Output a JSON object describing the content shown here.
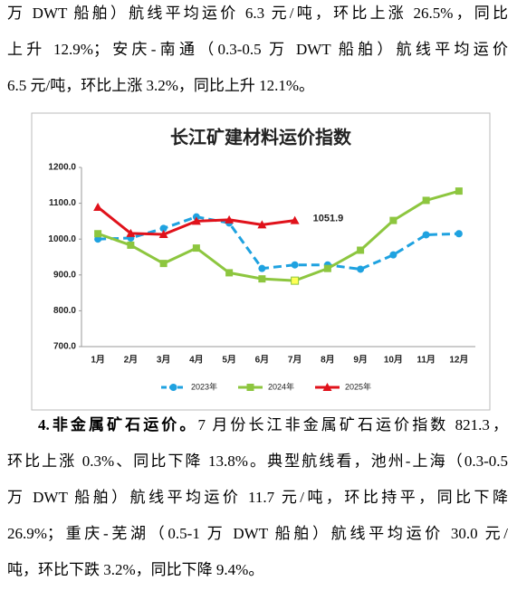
{
  "paragraphs": [
    {
      "lines": [
        "万 DWT 船舶）航线平均运价 6.3 元/吨，环比上涨 26.5%，同比",
        "上升 12.9%；安庆-南通（0.3-0.5 万 DWT 船舶）航线平均运价",
        "6.5 元/吨，环比上涨 3.2%，同比上升 12.1%。"
      ]
    },
    {
      "heading": "4.非金属矿石运价。",
      "lines": [
        "7 月份长江非金属矿石运价指数 821.3，",
        "环比上涨 0.3%、同比下降 13.8%。典型航线看，池州-上海（0.3-0.5",
        "万 DWT 船舶）航线平均运价 11.7 元/吨，环比持平，同比下降",
        "26.9%；重庆-芜湖（0.5-1 万 DWT 船舶）航线平均运价 30.0 元/",
        "吨，环比下跌 3.2%，同比下降 9.4%。"
      ]
    }
  ],
  "chart_data": {
    "type": "line",
    "title": "长江矿建材料运价指数",
    "categories": [
      "1月",
      "2月",
      "3月",
      "4月",
      "5月",
      "6月",
      "7月",
      "8月",
      "9月",
      "10月",
      "11月",
      "12月"
    ],
    "ylim": [
      700,
      1200
    ],
    "yticks": [
      {
        "value": 700,
        "label": "700.0"
      },
      {
        "value": 800,
        "label": "800.0"
      },
      {
        "value": 900,
        "label": "900.0"
      },
      {
        "value": 1000,
        "label": "1000.0"
      },
      {
        "value": 1100,
        "label": "1100.0"
      },
      {
        "value": 1200,
        "label": "1200.0"
      }
    ],
    "grid": false,
    "legend": "bottom",
    "series": [
      {
        "name": "2023年",
        "color": "#1fa2e0",
        "marker": "circle",
        "dashed": true,
        "values": [
          1000,
          1003,
          1030,
          1062,
          1045,
          918,
          928,
          928,
          916,
          956,
          1012,
          1015
        ]
      },
      {
        "name": "2024年",
        "color": "#8dc63f",
        "marker": "square",
        "dashed": false,
        "values": [
          1015,
          983,
          932,
          975,
          906,
          889,
          884,
          918,
          969,
          1052,
          1108,
          1134
        ]
      },
      {
        "name": "2025年",
        "color": "#e0121b",
        "marker": "triangle",
        "dashed": false,
        "values": [
          1089,
          1016,
          1013,
          1050,
          1054,
          1040,
          1051.9,
          null,
          null,
          null,
          null,
          null
        ]
      }
    ],
    "highlight": {
      "series": 1,
      "index": 6,
      "color": "#ffff55"
    },
    "annotations": [
      {
        "text": "1051.9",
        "series": 2,
        "index": 6
      }
    ]
  }
}
